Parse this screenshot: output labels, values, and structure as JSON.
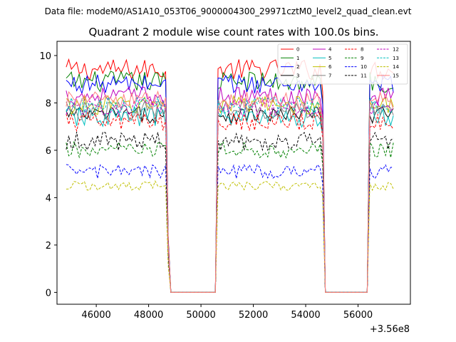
{
  "chart_data": {
    "type": "line",
    "suptitle": "Data file: modeM0/AS1A10_053T06_9000004300_29971cztM0_level2_quad_clean.evt",
    "title": "Quadrant 2 module wise count rates with 100.0s bins.",
    "xlabel": "",
    "ylabel": "",
    "x_offset_label": "+3.56e8",
    "xlim": [
      44500,
      58000
    ],
    "ylim": [
      -0.5,
      10.6
    ],
    "x_ticks": [
      46000,
      48000,
      50000,
      52000,
      54000,
      56000
    ],
    "x_tick_labels": [
      "46000",
      "48000",
      "50000",
      "52000",
      "54000",
      "56000"
    ],
    "y_ticks": [
      0,
      2,
      4,
      6,
      8,
      10
    ],
    "y_tick_labels": [
      "0",
      "2",
      "4",
      "6",
      "8",
      "10"
    ],
    "legend_position": "upper right",
    "gaps": [
      {
        "off_start": 48850,
        "off_end": 50550
      },
      {
        "off_start": 54700,
        "off_end": 56350
      }
    ],
    "segments": [
      {
        "x_start": 44850,
        "x_end": 48650
      },
      {
        "x_start": 50650,
        "x_end": 54650
      },
      {
        "x_start": 56450,
        "x_end": 57350
      }
    ],
    "bin_width": 100,
    "ramp_points": [
      48750,
      50650,
      54650,
      56450
    ],
    "series": [
      {
        "name": "0",
        "color": "#ff0000",
        "dash": "solid",
        "mean": 9.4,
        "noise": 0.45
      },
      {
        "name": "1",
        "color": "#008000",
        "dash": "solid",
        "mean": 8.9,
        "noise": 0.45
      },
      {
        "name": "2",
        "color": "#0000ff",
        "dash": "solid",
        "mean": 8.8,
        "noise": 0.4
      },
      {
        "name": "3",
        "color": "#000000",
        "dash": "solid",
        "mean": 7.5,
        "noise": 0.35
      },
      {
        "name": "4",
        "color": "#bf00bf",
        "dash": "solid",
        "mean": 8.3,
        "noise": 0.4
      },
      {
        "name": "5",
        "color": "#00bfbf",
        "dash": "solid",
        "mean": 7.4,
        "noise": 0.45
      },
      {
        "name": "6",
        "color": "#bfbf00",
        "dash": "solid",
        "mean": 7.9,
        "noise": 0.4
      },
      {
        "name": "7",
        "color": "#808080",
        "dash": "solid",
        "mean": 7.7,
        "noise": 0.45
      },
      {
        "name": "8",
        "color": "#ff0000",
        "dash": "dashed",
        "mean": 7.2,
        "noise": 0.4
      },
      {
        "name": "9",
        "color": "#008000",
        "dash": "dashed",
        "mean": 6.0,
        "noise": 0.35
      },
      {
        "name": "10",
        "color": "#0000ff",
        "dash": "dashed",
        "mean": 5.1,
        "noise": 0.3
      },
      {
        "name": "11",
        "color": "#000000",
        "dash": "dashed",
        "mean": 6.4,
        "noise": 0.4
      },
      {
        "name": "12",
        "color": "#bf00bf",
        "dash": "dashed",
        "mean": 7.8,
        "noise": 0.35
      },
      {
        "name": "13",
        "color": "#00bfbf",
        "dash": "dashed",
        "mean": 7.9,
        "noise": 0.35
      },
      {
        "name": "14",
        "color": "#bfbf00",
        "dash": "dashed",
        "mean": 4.5,
        "noise": 0.2
      },
      {
        "name": "15",
        "color": "#ff8080",
        "dash": "solid",
        "mean": 8.1,
        "noise": 0.4
      }
    ]
  }
}
